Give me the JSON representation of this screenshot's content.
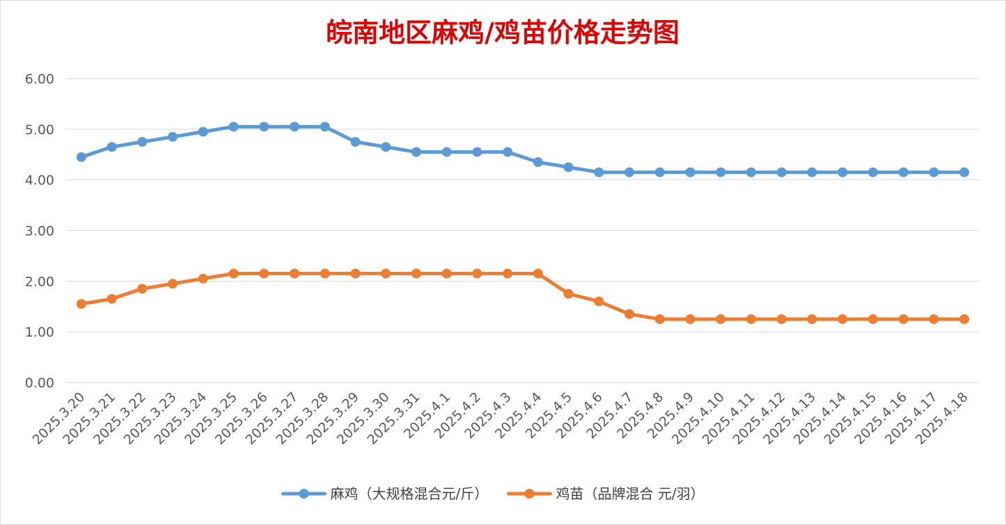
{
  "chart_data": {
    "type": "line",
    "title": "皖南地区麻鸡/鸡苗价格走势图",
    "title_color": "#e00000",
    "xlabel": "",
    "ylabel": "",
    "ylim": [
      0,
      6
    ],
    "yticks": [
      "0.00",
      "1.00",
      "2.00",
      "3.00",
      "4.00",
      "5.00",
      "6.00"
    ],
    "grid": true,
    "legend_position": "bottom",
    "categories": [
      "2025.3.20",
      "2025.3.21",
      "2025.3.22",
      "2025.3.23",
      "2025.3.24",
      "2025.3.25",
      "2025.3.26",
      "2025.3.27",
      "2025.3.28",
      "2025.3.29",
      "2025.3.30",
      "2025.3.31",
      "2025.4.1",
      "2025.4.2",
      "2025.4.3",
      "2025.4.4",
      "2025.4.5",
      "2025.4.6",
      "2025.4.7",
      "2025.4.8",
      "2025.4.9",
      "2025.4.10",
      "2025.4.11",
      "2025.4.12",
      "2025.4.13",
      "2025.4.14",
      "2025.4.15",
      "2025.4.16",
      "2025.4.17",
      "2025.4.18"
    ],
    "series": [
      {
        "name": "麻鸡（大规格混合元/斤）",
        "color": "#5b9bd5",
        "values": [
          4.45,
          4.65,
          4.75,
          4.85,
          4.95,
          5.05,
          5.05,
          5.05,
          5.05,
          4.75,
          4.65,
          4.55,
          4.55,
          4.55,
          4.55,
          4.35,
          4.25,
          4.15,
          4.15,
          4.15,
          4.15,
          4.15,
          4.15,
          4.15,
          4.15,
          4.15,
          4.15,
          4.15,
          4.15,
          4.15
        ]
      },
      {
        "name": "鸡苗（品牌混合 元/羽）",
        "color": "#ed7d31",
        "values": [
          1.55,
          1.65,
          1.85,
          1.95,
          2.05,
          2.15,
          2.15,
          2.15,
          2.15,
          2.15,
          2.15,
          2.15,
          2.15,
          2.15,
          2.15,
          2.15,
          1.75,
          1.6,
          1.35,
          1.25,
          1.25,
          1.25,
          1.25,
          1.25,
          1.25,
          1.25,
          1.25,
          1.25,
          1.25,
          1.25
        ]
      }
    ]
  }
}
